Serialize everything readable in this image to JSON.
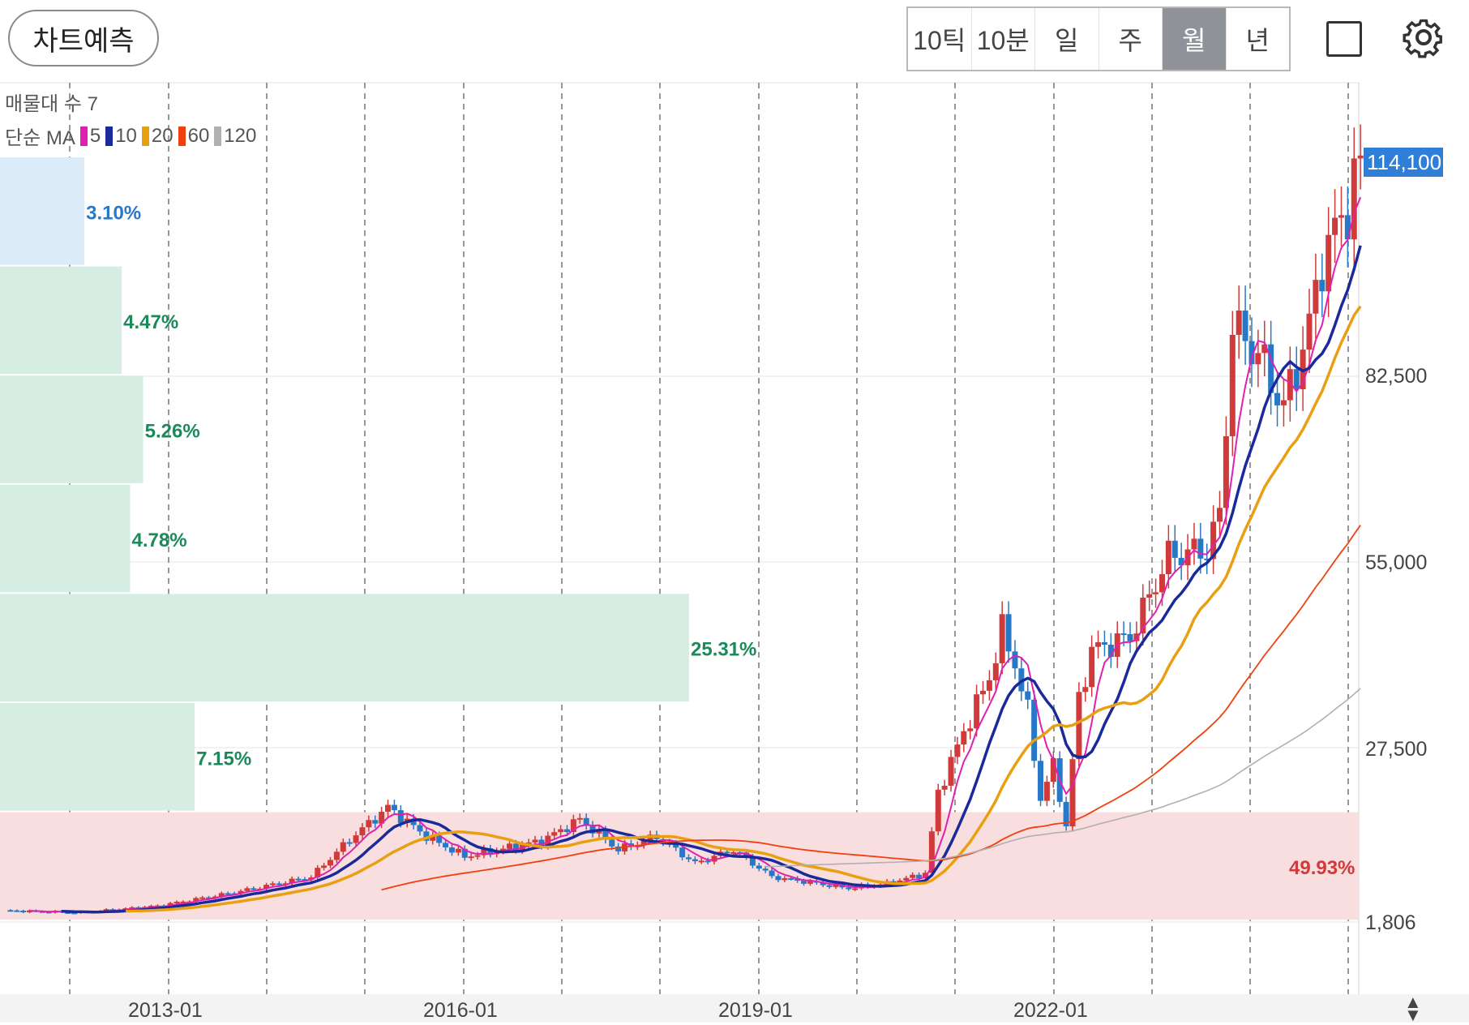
{
  "header": {
    "predict_label": "차트예측",
    "periods": [
      "10틱",
      "10분",
      "일",
      "주",
      "월",
      "년"
    ],
    "active_period": "월"
  },
  "legend": {
    "volume_profile_label": "매물대 수 7",
    "ma_label": "단순 MA",
    "ma_items": [
      {
        "label": "5",
        "color": "#e020b0"
      },
      {
        "label": "10",
        "color": "#1a2a9a"
      },
      {
        "label": "20",
        "color": "#e8a012"
      },
      {
        "label": "60",
        "color": "#f04010"
      },
      {
        "label": "120",
        "color": "#b0b0b0"
      }
    ]
  },
  "chart_data": {
    "type": "candlestick",
    "period": "monthly",
    "y_ticks": [
      "114,100",
      "82,500",
      "55,000",
      "27,500",
      "1,806"
    ],
    "current_price": "114,100",
    "x_ticks": [
      "2013-01",
      "2016-01",
      "2019-01",
      "2022-01"
    ],
    "volume_profile": [
      {
        "percent": "3.10%",
        "color": "#2878c8",
        "fill": "#dcebf8"
      },
      {
        "percent": "4.47%",
        "color": "#1a8a5a",
        "fill": "#d6ede4"
      },
      {
        "percent": "5.26%",
        "color": "#1a8a5a",
        "fill": "#d6ede4"
      },
      {
        "percent": "4.78%",
        "color": "#1a8a5a",
        "fill": "#d6ede4"
      },
      {
        "percent": "25.31%",
        "color": "#1a8a5a",
        "fill": "#d6ede4"
      },
      {
        "percent": "7.15%",
        "color": "#1a8a5a",
        "fill": "#d6ede4"
      },
      {
        "percent": "49.93%",
        "color": "#d03a3a",
        "fill": "#f8dede"
      }
    ],
    "up_color": "#d03a3a",
    "down_color": "#2878c8"
  }
}
